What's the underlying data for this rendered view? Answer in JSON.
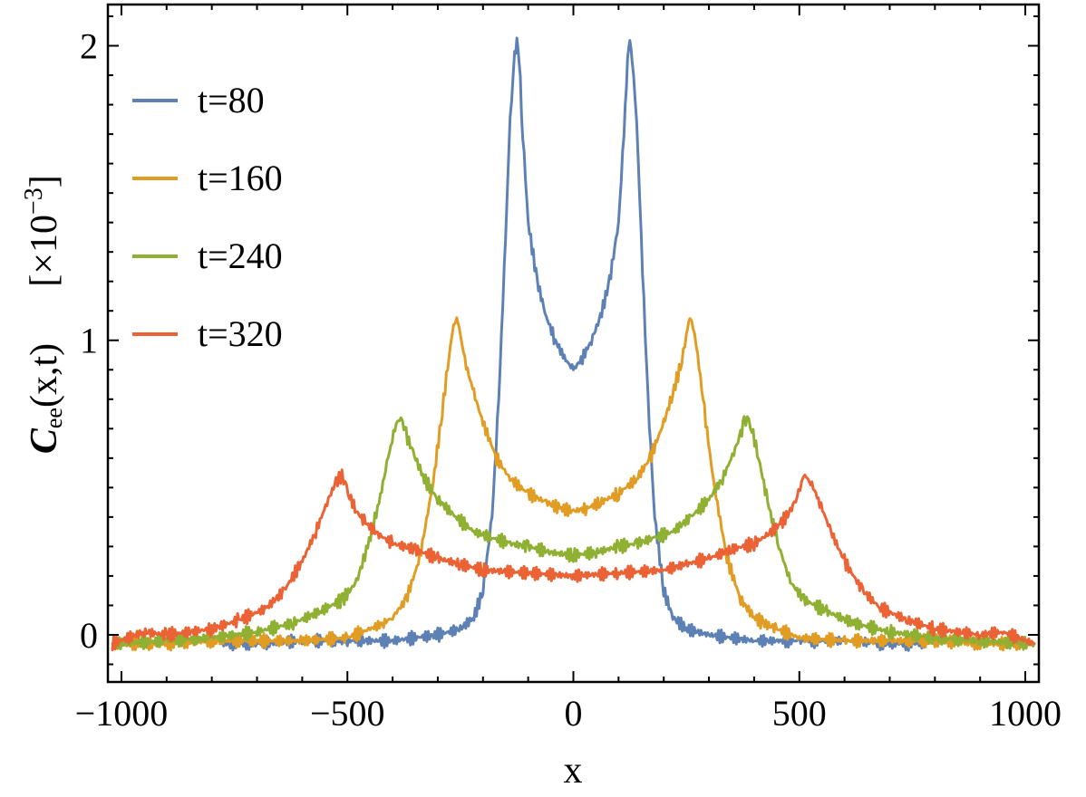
{
  "chart_data": {
    "type": "line",
    "xlabel": "x",
    "ylabel_main": "C",
    "ylabel_sub": "ee",
    "ylabel_args": "(x,t)",
    "yscale_label_prefix": "[×10",
    "yscale_label_exp": "−3",
    "yscale_label_suffix": "]",
    "xlim": [
      -1030,
      1030
    ],
    "ylim": [
      -0.16,
      2.14
    ],
    "x_ticks": [
      -1000,
      -500,
      0,
      500,
      1000
    ],
    "x_tick_labels": [
      "−1000",
      "−500",
      "0",
      "500",
      "1000"
    ],
    "y_ticks": [
      0,
      1,
      2
    ],
    "y_tick_labels": [
      "0",
      "1",
      "2"
    ],
    "legend_position": "top-left",
    "colors": {
      "t80": "#5e81b5",
      "t160": "#e19c24",
      "t240": "#8fb032",
      "t320": "#eb6235"
    },
    "series": [
      {
        "name": "t=80",
        "color": "#5e81b5",
        "x": [
          -780,
          -700,
          -600,
          -500,
          -400,
          -300,
          -250,
          -220,
          -200,
          -180,
          -165,
          -150,
          -140,
          -130,
          -125,
          -120,
          -112,
          -100,
          -80,
          -60,
          -40,
          -20,
          0,
          20,
          40,
          60,
          80,
          100,
          112,
          120,
          125,
          130,
          140,
          150,
          165,
          180,
          200,
          220,
          250,
          300,
          400,
          500,
          600,
          700,
          780
        ],
        "y": [
          -0.03,
          -0.03,
          -0.02,
          -0.02,
          -0.02,
          0.0,
          0.02,
          0.06,
          0.15,
          0.4,
          0.8,
          1.35,
          1.75,
          1.96,
          2.02,
          1.96,
          1.7,
          1.4,
          1.2,
          1.08,
          1.0,
          0.94,
          0.9,
          0.94,
          1.0,
          1.08,
          1.2,
          1.4,
          1.7,
          1.96,
          2.02,
          1.96,
          1.75,
          1.35,
          0.8,
          0.4,
          0.15,
          0.06,
          0.02,
          0.0,
          -0.02,
          -0.02,
          -0.02,
          -0.03,
          -0.03
        ]
      },
      {
        "name": "t=160",
        "color": "#e19c24",
        "x": [
          -1020,
          -900,
          -800,
          -700,
          -600,
          -500,
          -450,
          -420,
          -400,
          -370,
          -340,
          -310,
          -290,
          -275,
          -265,
          -258,
          -250,
          -240,
          -220,
          -200,
          -170,
          -140,
          -100,
          -60,
          -30,
          0,
          30,
          60,
          100,
          140,
          170,
          200,
          220,
          240,
          250,
          258,
          265,
          275,
          290,
          310,
          340,
          370,
          400,
          420,
          450,
          500,
          600,
          700,
          800,
          900,
          1020
        ],
        "y": [
          -0.03,
          -0.03,
          -0.02,
          -0.02,
          -0.02,
          -0.01,
          0.02,
          0.04,
          0.06,
          0.12,
          0.26,
          0.52,
          0.76,
          0.95,
          1.05,
          1.08,
          1.02,
          0.93,
          0.82,
          0.72,
          0.6,
          0.53,
          0.48,
          0.45,
          0.43,
          0.42,
          0.43,
          0.45,
          0.48,
          0.53,
          0.6,
          0.72,
          0.82,
          0.93,
          1.02,
          1.08,
          1.05,
          0.95,
          0.76,
          0.52,
          0.26,
          0.12,
          0.06,
          0.04,
          0.02,
          -0.01,
          -0.02,
          -0.02,
          -0.02,
          -0.03,
          -0.03
        ]
      },
      {
        "name": "t=240",
        "color": "#8fb032",
        "x": [
          -1020,
          -900,
          -800,
          -700,
          -620,
          -560,
          -510,
          -480,
          -455,
          -430,
          -410,
          -395,
          -385,
          -378,
          -370,
          -355,
          -330,
          -300,
          -260,
          -220,
          -180,
          -140,
          -100,
          -50,
          0,
          50,
          100,
          140,
          180,
          220,
          260,
          300,
          330,
          355,
          370,
          378,
          385,
          395,
          410,
          430,
          455,
          480,
          510,
          560,
          620,
          700,
          800,
          900,
          1020
        ],
        "y": [
          -0.03,
          -0.02,
          -0.01,
          0.01,
          0.04,
          0.08,
          0.12,
          0.18,
          0.3,
          0.45,
          0.6,
          0.7,
          0.74,
          0.72,
          0.68,
          0.62,
          0.53,
          0.46,
          0.4,
          0.35,
          0.33,
          0.31,
          0.3,
          0.28,
          0.27,
          0.28,
          0.3,
          0.31,
          0.33,
          0.35,
          0.4,
          0.46,
          0.53,
          0.62,
          0.68,
          0.72,
          0.74,
          0.7,
          0.6,
          0.45,
          0.3,
          0.18,
          0.12,
          0.08,
          0.04,
          0.01,
          -0.01,
          -0.02,
          -0.03
        ]
      },
      {
        "name": "t=320",
        "color": "#eb6235",
        "x": [
          -1020,
          -950,
          -900,
          -800,
          -740,
          -680,
          -640,
          -600,
          -570,
          -545,
          -525,
          -512,
          -505,
          -495,
          -480,
          -460,
          -430,
          -400,
          -350,
          -300,
          -250,
          -200,
          -100,
          0,
          100,
          200,
          250,
          300,
          350,
          400,
          430,
          460,
          480,
          495,
          505,
          512,
          525,
          545,
          570,
          600,
          640,
          680,
          740,
          800,
          900,
          950,
          1020
        ],
        "y": [
          -0.03,
          0.01,
          0.0,
          0.02,
          0.05,
          0.09,
          0.15,
          0.25,
          0.35,
          0.45,
          0.52,
          0.54,
          0.52,
          0.47,
          0.42,
          0.38,
          0.34,
          0.31,
          0.29,
          0.26,
          0.24,
          0.22,
          0.21,
          0.2,
          0.21,
          0.22,
          0.24,
          0.26,
          0.29,
          0.31,
          0.34,
          0.38,
          0.42,
          0.47,
          0.52,
          0.54,
          0.52,
          0.45,
          0.35,
          0.25,
          0.15,
          0.09,
          0.05,
          0.02,
          0.0,
          0.01,
          -0.03
        ]
      }
    ]
  }
}
